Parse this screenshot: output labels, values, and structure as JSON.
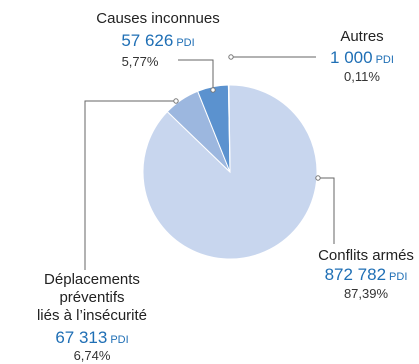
{
  "chart_data": {
    "type": "pie",
    "unit": "PDI",
    "slices": [
      {
        "name_lines": [
          "Conflits armés"
        ],
        "value": "872 782",
        "value_num": 872782,
        "percent": "87,39%",
        "color": "#c8d6ee"
      },
      {
        "name_lines": [
          "Déplacements",
          "préventifs",
          "liés à l’insécurité"
        ],
        "value": "67 313",
        "value_num": 67313,
        "percent": "6,74%",
        "color": "#9cb7df"
      },
      {
        "name_lines": [
          "Causes inconnues"
        ],
        "value": "57 626",
        "value_num": 57626,
        "percent": "5,77%",
        "color": "#5b92cf"
      },
      {
        "name_lines": [
          "Autres"
        ],
        "value": "1 000",
        "value_num": 1000,
        "percent": "0,11%",
        "color": "#1f6fb5"
      }
    ]
  }
}
